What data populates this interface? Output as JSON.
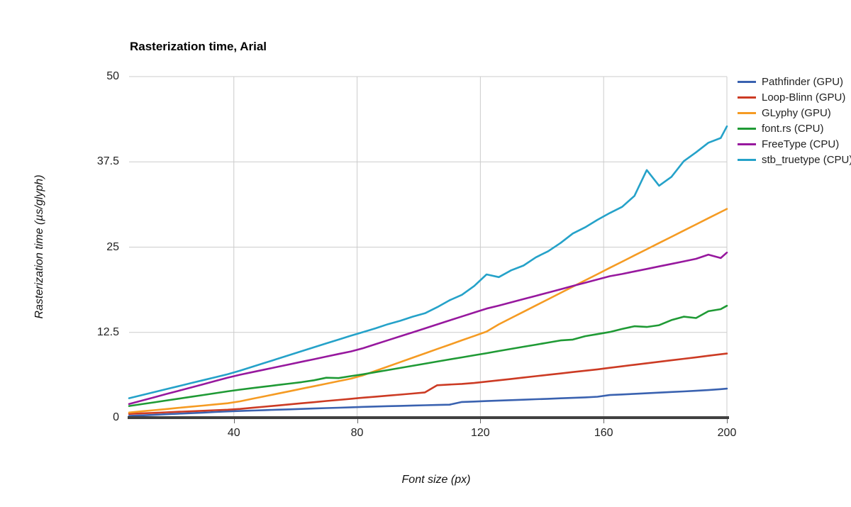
{
  "chart_data": {
    "type": "line",
    "title": "Rasterization time, Arial",
    "xlabel": "Font size (px)",
    "ylabel": "Rasterization time (µs/glyph)",
    "xlim": [
      6,
      200
    ],
    "ylim": [
      0,
      50
    ],
    "x_ticks": [
      40,
      80,
      120,
      160,
      200
    ],
    "y_ticks": [
      0,
      12.5,
      25,
      37.5,
      50
    ],
    "grid": true,
    "legend_position": "right",
    "colors": {
      "grid": "#cccccc",
      "axis_baseline": "#404040",
      "tick_text": "#222222",
      "title_text": "#000000"
    },
    "x": [
      6,
      10,
      14,
      18,
      22,
      26,
      30,
      34,
      38,
      42,
      46,
      50,
      54,
      58,
      62,
      66,
      70,
      74,
      78,
      82,
      86,
      90,
      94,
      98,
      102,
      106,
      110,
      114,
      118,
      122,
      126,
      130,
      134,
      138,
      142,
      146,
      150,
      154,
      158,
      162,
      166,
      170,
      174,
      178,
      182,
      186,
      190,
      194,
      198,
      200
    ],
    "series": [
      {
        "name": "Pathfinder (GPU)",
        "color": "#3A62B0",
        "values": [
          0.25,
          0.33,
          0.41,
          0.5,
          0.58,
          0.66,
          0.74,
          0.83,
          0.91,
          0.98,
          1.04,
          1.1,
          1.16,
          1.22,
          1.28,
          1.34,
          1.4,
          1.46,
          1.52,
          1.58,
          1.63,
          1.68,
          1.73,
          1.78,
          1.82,
          1.86,
          1.9,
          2.3,
          2.36,
          2.43,
          2.5,
          2.57,
          2.63,
          2.7,
          2.77,
          2.84,
          2.9,
          2.97,
          3.07,
          3.32,
          3.4,
          3.49,
          3.58,
          3.67,
          3.76,
          3.85,
          3.94,
          4.04,
          4.18,
          4.25
        ]
      },
      {
        "name": "Loop-Blinn (GPU)",
        "color": "#CC3B24",
        "values": [
          0.55,
          0.63,
          0.7,
          0.78,
          0.86,
          0.93,
          1.01,
          1.09,
          1.16,
          1.28,
          1.45,
          1.61,
          1.78,
          1.94,
          2.11,
          2.27,
          2.44,
          2.6,
          2.77,
          2.93,
          3.08,
          3.23,
          3.38,
          3.53,
          3.7,
          4.75,
          4.85,
          4.95,
          5.08,
          5.28,
          5.48,
          5.68,
          5.88,
          6.08,
          6.28,
          6.48,
          6.68,
          6.88,
          7.08,
          7.31,
          7.53,
          7.75,
          7.97,
          8.19,
          8.41,
          8.63,
          8.85,
          9.07,
          9.29,
          9.4
        ]
      },
      {
        "name": "GLyphy (GPU)",
        "color": "#F59B23",
        "values": [
          0.75,
          0.92,
          1.09,
          1.26,
          1.43,
          1.6,
          1.77,
          1.94,
          2.11,
          2.39,
          2.76,
          3.13,
          3.5,
          3.87,
          4.24,
          4.61,
          4.98,
          5.35,
          5.72,
          6.22,
          6.86,
          7.5,
          8.14,
          8.78,
          9.42,
          10.06,
          10.7,
          11.34,
          11.98,
          12.62,
          13.68,
          14.6,
          15.52,
          16.44,
          17.36,
          18.28,
          19.2,
          20.12,
          21.04,
          21.96,
          22.87,
          23.78,
          24.69,
          25.6,
          26.51,
          27.42,
          28.33,
          29.24,
          30.15,
          30.6
        ]
      },
      {
        "name": "font.rs (CPU)",
        "color": "#1F9A35",
        "values": [
          1.7,
          1.97,
          2.24,
          2.51,
          2.78,
          3.05,
          3.32,
          3.59,
          3.86,
          4.11,
          4.33,
          4.55,
          4.77,
          4.99,
          5.21,
          5.48,
          5.85,
          5.8,
          6.09,
          6.36,
          6.67,
          6.98,
          7.29,
          7.6,
          7.91,
          8.22,
          8.53,
          8.84,
          9.15,
          9.45,
          9.77,
          10.08,
          10.39,
          10.7,
          11.01,
          11.32,
          11.45,
          11.94,
          12.25,
          12.56,
          13.0,
          13.4,
          13.3,
          13.55,
          14.3,
          14.8,
          14.6,
          15.6,
          15.9,
          16.4
        ]
      },
      {
        "name": "FreeType (CPU)",
        "color": "#97189E",
        "values": [
          2.0,
          2.48,
          2.96,
          3.45,
          3.93,
          4.41,
          4.89,
          5.38,
          5.86,
          6.29,
          6.67,
          7.05,
          7.43,
          7.81,
          8.19,
          8.57,
          8.95,
          9.33,
          9.71,
          10.19,
          10.77,
          11.35,
          11.93,
          12.51,
          13.09,
          13.67,
          14.25,
          14.83,
          15.41,
          15.99,
          16.42,
          16.9,
          17.38,
          17.86,
          18.34,
          18.82,
          19.3,
          19.78,
          20.26,
          20.74,
          21.06,
          21.43,
          21.8,
          22.17,
          22.54,
          22.91,
          23.28,
          23.9,
          23.4,
          24.2
        ]
      },
      {
        "name": "stb_truetype (CPU)",
        "color": "#25A2C9",
        "values": [
          2.85,
          3.29,
          3.73,
          4.17,
          4.61,
          5.05,
          5.49,
          5.93,
          6.37,
          6.89,
          7.46,
          8.03,
          8.6,
          9.17,
          9.74,
          10.31,
          10.88,
          11.45,
          12.02,
          12.55,
          13.1,
          13.7,
          14.2,
          14.8,
          15.3,
          16.2,
          17.2,
          18.0,
          19.3,
          21.0,
          20.6,
          21.6,
          22.3,
          23.5,
          24.4,
          25.6,
          27.0,
          27.9,
          29.0,
          30.0,
          30.9,
          32.5,
          36.3,
          34.0,
          35.3,
          37.6,
          38.9,
          40.3,
          41.0,
          42.7
        ]
      }
    ]
  }
}
